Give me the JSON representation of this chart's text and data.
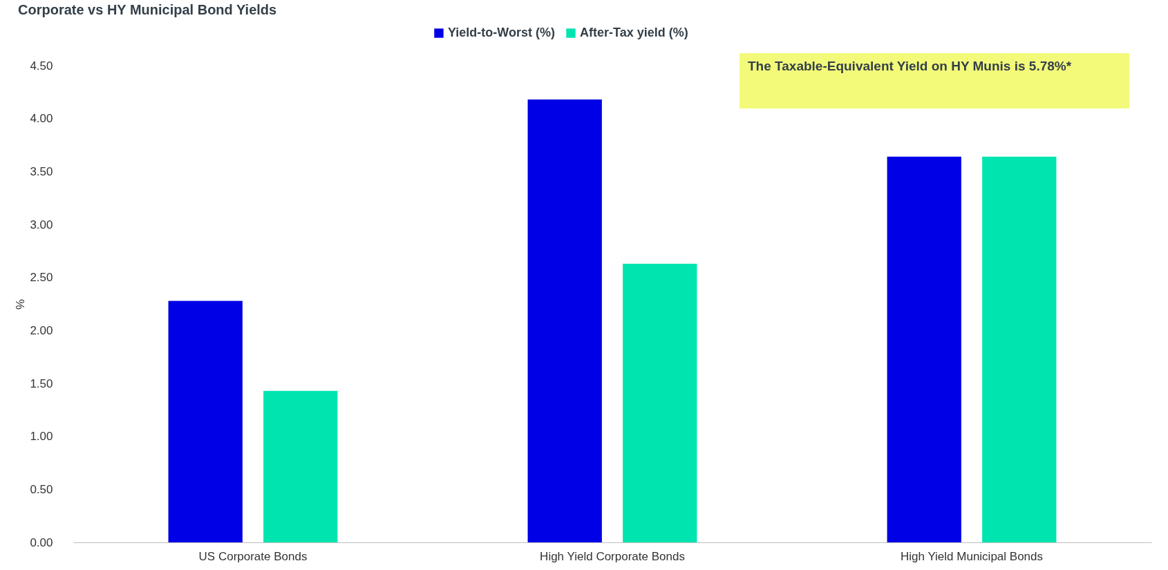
{
  "chart_data": {
    "type": "bar",
    "title": "Corporate vs HY Municipal Bond Yields",
    "ylabel": "%",
    "categories": [
      "US Corporate Bonds",
      "High Yield Corporate Bonds",
      "High Yield Municipal Bonds"
    ],
    "series": [
      {
        "name": "Yield-to-Worst (%)",
        "color": "#0000e6",
        "values": [
          2.28,
          4.18,
          3.64
        ]
      },
      {
        "name": "After-Tax yield (%)",
        "color": "#00e5b0",
        "values": [
          1.43,
          2.63,
          3.64
        ]
      }
    ],
    "ylim": [
      0,
      4.5
    ],
    "yticks": [
      {
        "value": 0,
        "label": "0.00"
      },
      {
        "value": 0.5,
        "label": "0.50"
      },
      {
        "value": 1,
        "label": "1.00"
      },
      {
        "value": 1.5,
        "label": "1.50"
      },
      {
        "value": 2,
        "label": "2.00"
      },
      {
        "value": 2.5,
        "label": "2.50"
      },
      {
        "value": 3,
        "label": "3.00"
      },
      {
        "value": 3.5,
        "label": "3.50"
      },
      {
        "value": 4,
        "label": "4.00"
      },
      {
        "value": 4.5,
        "label": "4.50"
      }
    ],
    "legend": "top",
    "grid": false,
    "annotations": [
      "The Taxable-Equivalent Yield on HY Munis is 5.78%*"
    ]
  }
}
